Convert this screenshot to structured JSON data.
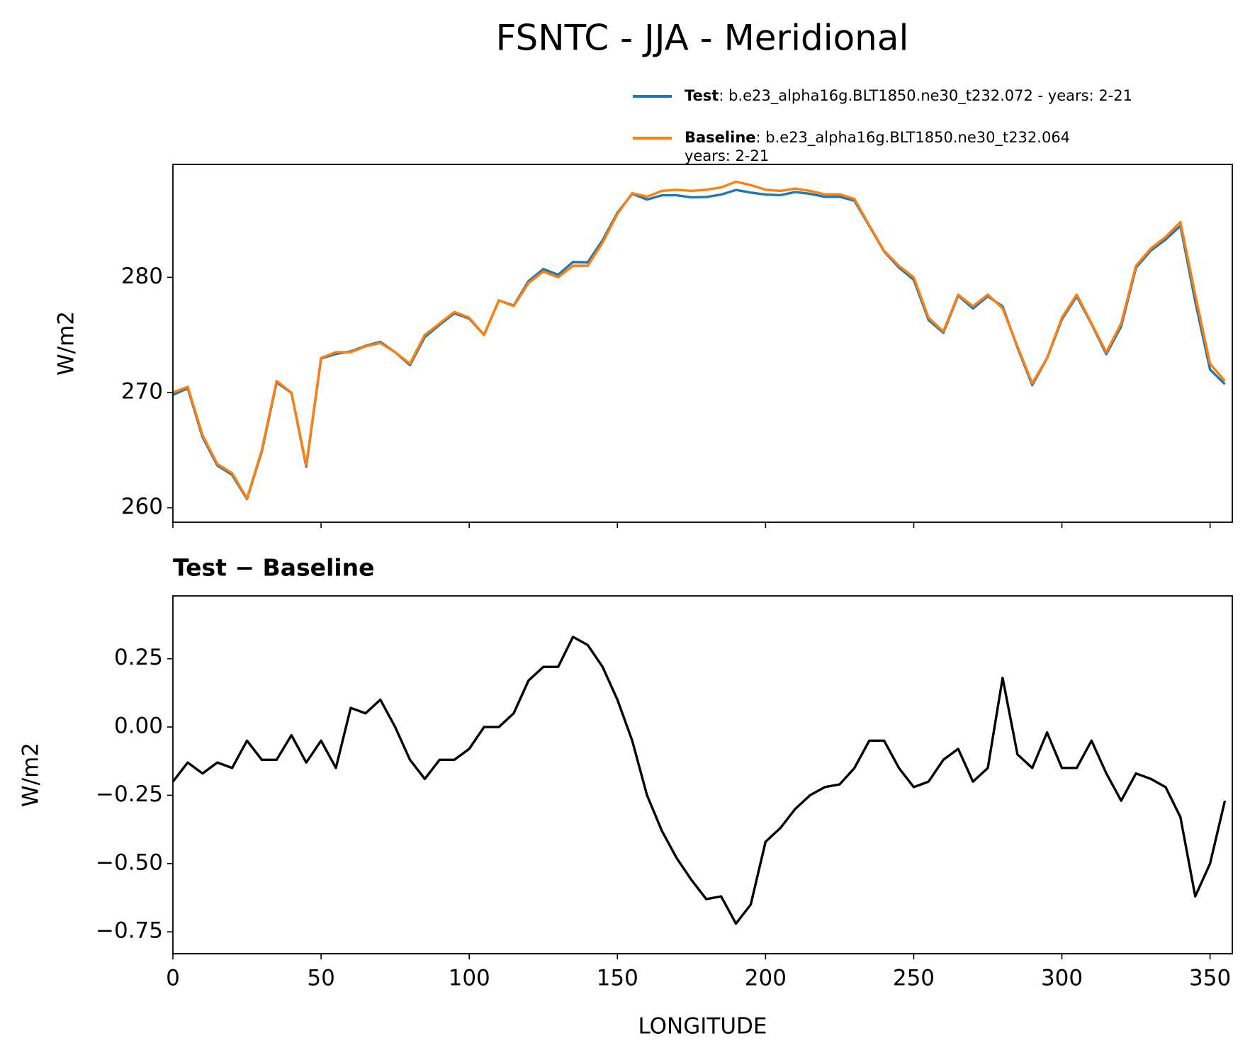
{
  "chart_data": [
    {
      "type": "line",
      "title": "FSNTC - JJA - Meridional",
      "ylabel": "W/m2",
      "x": [
        0,
        5,
        10,
        15,
        20,
        25,
        30,
        35,
        40,
        45,
        50,
        55,
        60,
        65,
        70,
        75,
        80,
        85,
        90,
        95,
        100,
        105,
        110,
        115,
        120,
        125,
        130,
        135,
        140,
        145,
        150,
        155,
        160,
        165,
        170,
        175,
        180,
        185,
        190,
        195,
        200,
        205,
        210,
        215,
        220,
        225,
        230,
        235,
        240,
        245,
        250,
        255,
        260,
        265,
        270,
        275,
        280,
        285,
        290,
        295,
        300,
        305,
        310,
        315,
        320,
        325,
        330,
        335,
        340,
        345,
        350,
        355
      ],
      "series": [
        {
          "name": "Test",
          "description": [
            ": b.e23_alpha16g.BLT1850.ne30_t232.072 - years: 2-21"
          ],
          "color": "#1f77b4",
          "values": [
            269.8,
            270.37,
            266.13,
            263.67,
            262.85,
            260.75,
            264.88,
            270.88,
            269.97,
            263.57,
            272.95,
            273.35,
            273.57,
            274.05,
            274.4,
            273.5,
            272.38,
            274.81,
            275.88,
            276.88,
            276.42,
            275,
            278,
            277.55,
            279.67,
            280.72,
            280.22,
            281.33,
            281.3,
            283.22,
            285.6,
            287.25,
            286.75,
            287.12,
            287.12,
            286.94,
            286.97,
            287.18,
            287.58,
            287.35,
            287.18,
            287.13,
            287.4,
            287.25,
            286.98,
            286.99,
            286.65,
            284.45,
            282.25,
            280.85,
            279.78,
            276.3,
            275.18,
            278.42,
            277.3,
            278.35,
            277.48,
            273.9,
            270.65,
            272.98,
            276.35,
            278.35,
            275.95,
            273.33,
            275.73,
            280.83,
            282.31,
            283.28,
            284.47,
            277.88,
            272,
            270.73
          ]
        },
        {
          "name": "Baseline",
          "description": [
            ": b.e23_alpha16g.BLT1850.ne30_t232.064",
            "years: 2-21"
          ],
          "color": "#ff7f0e",
          "values": [
            270,
            270.5,
            266.3,
            263.8,
            263,
            260.8,
            265,
            271,
            270,
            263.7,
            273,
            273.5,
            273.5,
            274,
            274.3,
            273.5,
            272.5,
            275,
            276,
            277,
            276.5,
            275,
            278,
            277.5,
            279.5,
            280.5,
            280,
            281,
            281,
            283,
            285.5,
            287.3,
            287,
            287.5,
            287.6,
            287.5,
            287.6,
            287.8,
            288.3,
            288,
            287.6,
            287.5,
            287.7,
            287.5,
            287.2,
            287.2,
            286.8,
            284.5,
            282.3,
            281,
            280,
            276.5,
            275.3,
            278.5,
            277.5,
            278.5,
            277.3,
            274,
            270.8,
            273,
            276.5,
            278.5,
            276,
            273.5,
            276,
            281,
            282.5,
            283.5,
            284.8,
            278.5,
            272.5,
            271
          ]
        }
      ],
      "xlim": [
        0,
        357.5
      ],
      "xticks": [
        0,
        50,
        100,
        150,
        200,
        250,
        300,
        350
      ],
      "xtick_labels": false,
      "ylim": [
        258.75,
        289.8
      ],
      "yticks": [
        260,
        270,
        280
      ]
    },
    {
      "type": "line",
      "subtitle": "Test − Baseline",
      "xlabel": "LONGITUDE",
      "ylabel": "W/m2",
      "x": [
        0,
        5,
        10,
        15,
        20,
        25,
        30,
        35,
        40,
        45,
        50,
        55,
        60,
        65,
        70,
        75,
        80,
        85,
        90,
        95,
        100,
        105,
        110,
        115,
        120,
        125,
        130,
        135,
        140,
        145,
        150,
        155,
        160,
        165,
        170,
        175,
        180,
        185,
        190,
        195,
        200,
        205,
        210,
        215,
        220,
        225,
        230,
        235,
        240,
        245,
        250,
        255,
        260,
        265,
        270,
        275,
        280,
        285,
        290,
        295,
        300,
        305,
        310,
        315,
        320,
        325,
        330,
        335,
        340,
        345,
        350,
        355
      ],
      "series": [
        {
          "color": "#000000",
          "values": [
            -0.2,
            -0.13,
            -0.17,
            -0.13,
            -0.15,
            -0.05,
            -0.12,
            -0.12,
            -0.03,
            -0.13,
            -0.05,
            -0.15,
            0.07,
            0.05,
            0.1,
            0.0,
            -0.12,
            -0.19,
            -0.12,
            -0.12,
            -0.08,
            0.0,
            0.0,
            0.05,
            0.17,
            0.22,
            0.22,
            0.33,
            0.3,
            0.22,
            0.1,
            -0.05,
            -0.25,
            -0.38,
            -0.48,
            -0.56,
            -0.63,
            -0.62,
            -0.72,
            -0.65,
            -0.42,
            -0.37,
            -0.3,
            -0.25,
            -0.22,
            -0.21,
            -0.15,
            -0.05,
            -0.05,
            -0.15,
            -0.22,
            -0.2,
            -0.12,
            -0.08,
            -0.2,
            -0.15,
            0.18,
            -0.1,
            -0.15,
            -0.02,
            -0.15,
            -0.15,
            -0.05,
            -0.17,
            -0.27,
            -0.17,
            -0.19,
            -0.22,
            -0.33,
            -0.62,
            -0.5,
            -0.27
          ]
        }
      ],
      "xlim": [
        0,
        357.5
      ],
      "xticks": [
        0,
        50,
        100,
        150,
        200,
        250,
        300,
        350
      ],
      "xtick_labels": true,
      "ylim": [
        -0.83,
        0.48
      ],
      "yticks": [
        {
          "value": -0.75,
          "label": "−0.75"
        },
        {
          "value": -0.5,
          "label": "−0.50"
        },
        {
          "value": -0.25,
          "label": "−0.25"
        },
        {
          "value": 0,
          "label": "0.00"
        },
        {
          "value": 0.25,
          "label": "0.25"
        }
      ]
    }
  ]
}
